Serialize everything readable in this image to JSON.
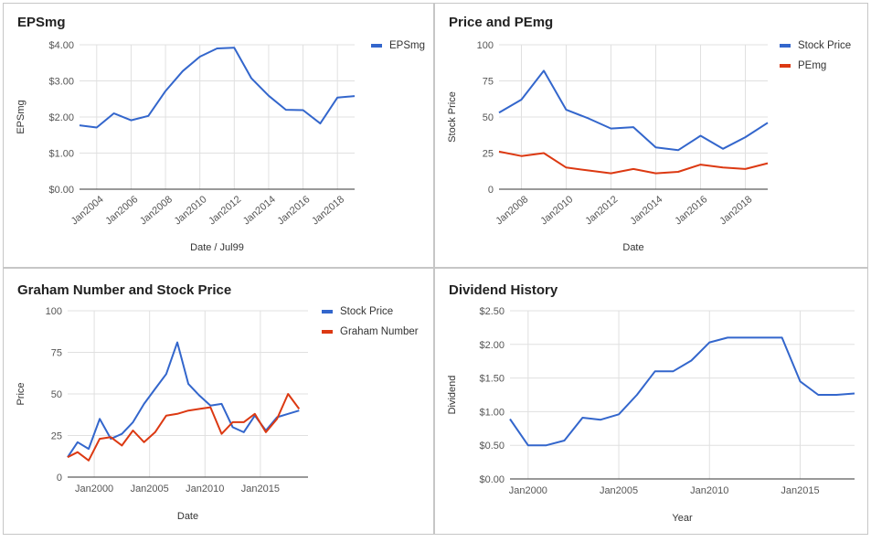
{
  "colors": {
    "blue": "#3366cc",
    "red": "#dc3912",
    "grid": "#e0e0e0",
    "axis": "#333333"
  },
  "chart_data": [
    {
      "id": "eps",
      "type": "line",
      "title": "EPSmg",
      "xlabel": "Date / Jul99",
      "ylabel": "EPSmg",
      "x_ticks": [
        "Jan2004",
        "Jan2006",
        "Jan2008",
        "Jan2010",
        "Jan2012",
        "Jan2014",
        "Jan2016",
        "Jan2018"
      ],
      "y_ticks": [
        "$0.00",
        "$1.00",
        "$2.00",
        "$3.00",
        "$4.00"
      ],
      "ylim": [
        0,
        4
      ],
      "xlim": [
        2003,
        2019
      ],
      "legend": "right",
      "series": [
        {
          "name": "EPSmg",
          "color": "#3366cc",
          "x": [
            2003,
            2004,
            2005,
            2006,
            2007,
            2008,
            2009,
            2010,
            2011,
            2012,
            2013,
            2014,
            2015,
            2016,
            2017,
            2018,
            2019
          ],
          "values": [
            1.77,
            1.71,
            2.1,
            1.91,
            2.03,
            2.72,
            3.27,
            3.67,
            3.9,
            3.92,
            3.07,
            2.59,
            2.2,
            2.19,
            1.82,
            2.54,
            2.58
          ]
        }
      ]
    },
    {
      "id": "pe",
      "type": "line",
      "title": "Price and PEmg",
      "xlabel": "Date",
      "ylabel": "Stock Price",
      "x_ticks": [
        "Jan2008",
        "Jan2010",
        "Jan2012",
        "Jan2014",
        "Jan2016",
        "Jan2018"
      ],
      "y_ticks": [
        "0",
        "25",
        "50",
        "75",
        "100"
      ],
      "ylim": [
        0,
        100
      ],
      "xlim": [
        2007,
        2019
      ],
      "legend": "right",
      "series": [
        {
          "name": "Stock Price",
          "color": "#3366cc",
          "x": [
            2007,
            2008,
            2009,
            2010,
            2011,
            2012,
            2013,
            2014,
            2015,
            2016,
            2017,
            2018,
            2019
          ],
          "values": [
            53,
            62,
            82,
            55,
            49,
            42,
            43,
            29,
            27,
            37,
            28,
            36,
            46
          ]
        },
        {
          "name": "PEmg",
          "color": "#dc3912",
          "x": [
            2007,
            2008,
            2009,
            2010,
            2011,
            2012,
            2013,
            2014,
            2015,
            2016,
            2017,
            2018,
            2019
          ],
          "values": [
            26,
            23,
            25,
            15,
            13,
            11,
            14,
            11,
            12,
            17,
            15,
            14,
            18
          ]
        }
      ]
    },
    {
      "id": "graham",
      "type": "line",
      "title": "Graham Number and Stock Price",
      "xlabel": "Date",
      "ylabel": "Price",
      "x_ticks": [
        "Jan2000",
        "Jan2005",
        "Jan2010",
        "Jan2015"
      ],
      "y_ticks": [
        "0",
        "25",
        "50",
        "75",
        "100"
      ],
      "ylim": [
        0,
        100
      ],
      "xlim": [
        1997.6,
        2019.3
      ],
      "legend": "right",
      "series": [
        {
          "name": "Stock Price",
          "color": "#3366cc",
          "x": [
            1997.6,
            1998.5,
            1999.5,
            2000.5,
            2001.5,
            2002.5,
            2003.5,
            2004.5,
            2005.5,
            2006.5,
            2007.5,
            2008.5,
            2009.5,
            2010.5,
            2011.5,
            2012.5,
            2013.5,
            2014.5,
            2015.5,
            2016.5,
            2017.5,
            2018.5
          ],
          "values": [
            12,
            21,
            17,
            35,
            23,
            26,
            33,
            44,
            53,
            62,
            81,
            56,
            49,
            43,
            44,
            30,
            27,
            37,
            28,
            36,
            38,
            40
          ]
        },
        {
          "name": "Graham Number",
          "color": "#dc3912",
          "x": [
            1997.6,
            1998.5,
            1999.5,
            2000.5,
            2001.5,
            2002.5,
            2003.5,
            2004.5,
            2005.5,
            2006.5,
            2007.5,
            2008.5,
            2009.5,
            2010.5,
            2011.5,
            2012.5,
            2013.5,
            2014.5,
            2015.5,
            2016.5,
            2017.5,
            2018.5
          ],
          "values": [
            12,
            15,
            10,
            23,
            24,
            19,
            28,
            21,
            27,
            37,
            38,
            40,
            41,
            42,
            26,
            33,
            33,
            38,
            27,
            35,
            50,
            41
          ]
        }
      ]
    },
    {
      "id": "div",
      "type": "line",
      "title": "Dividend History",
      "xlabel": "Year",
      "ylabel": "Dividend",
      "x_ticks": [
        "Jan2000",
        "Jan2005",
        "Jan2010",
        "Jan2015"
      ],
      "y_ticks": [
        "$0.00",
        "$0.50",
        "$1.00",
        "$1.50",
        "$2.00",
        "$2.50"
      ],
      "ylim": [
        0,
        2.5
      ],
      "xlim": [
        1999,
        2018
      ],
      "legend": "none",
      "series": [
        {
          "name": "Dividend",
          "color": "#3366cc",
          "x": [
            1999,
            2000,
            2001,
            2002,
            2003,
            2004,
            2005,
            2006,
            2007,
            2008,
            2009,
            2010,
            2011,
            2012,
            2013,
            2014,
            2015,
            2016,
            2017,
            2018
          ],
          "values": [
            0.89,
            0.5,
            0.5,
            0.57,
            0.91,
            0.88,
            0.96,
            1.25,
            1.6,
            1.6,
            1.76,
            2.03,
            2.1,
            2.1,
            2.1,
            2.1,
            1.45,
            1.25,
            1.25,
            1.27
          ]
        }
      ]
    }
  ]
}
